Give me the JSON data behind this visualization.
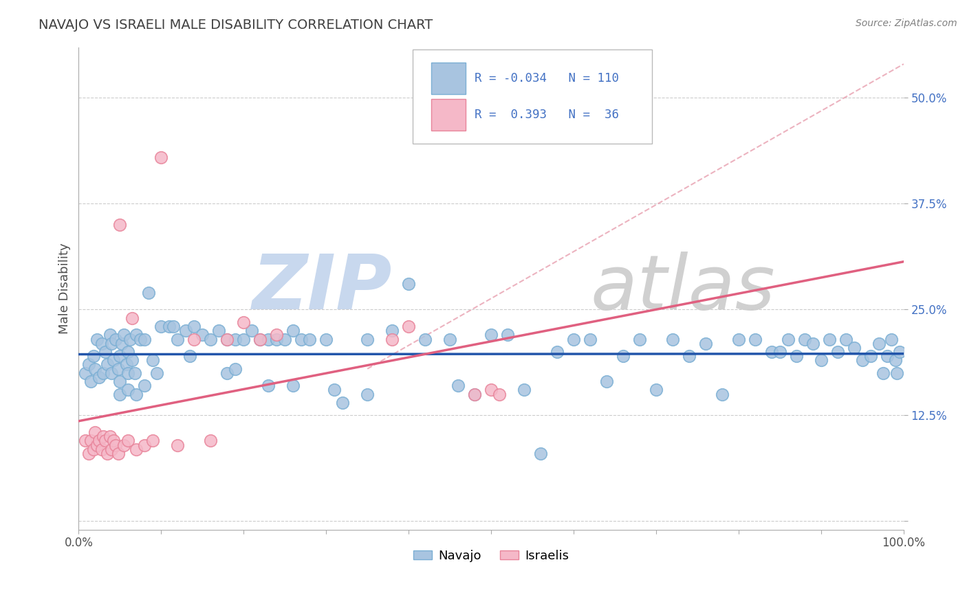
{
  "title": "NAVAJO VS ISRAELI MALE DISABILITY CORRELATION CHART",
  "source": "Source: ZipAtlas.com",
  "ylabel": "Male Disability",
  "navajo_R": -0.034,
  "navajo_N": 110,
  "israeli_R": 0.393,
  "israeli_N": 36,
  "navajo_color": "#a8c4e0",
  "navajo_edge": "#7bafd4",
  "israeli_color": "#f5b8c8",
  "israeli_edge": "#e8849a",
  "navajo_line_color": "#2255aa",
  "israeli_line_color": "#e06080",
  "ref_line_color": "#e8a0b0",
  "grid_color": "#cccccc",
  "title_color": "#404040",
  "legend_text_color": "#4472c4",
  "xlim": [
    0.0,
    1.0
  ],
  "ylim": [
    -0.01,
    0.56
  ],
  "yticks": [
    0.0,
    0.125,
    0.25,
    0.375,
    0.5
  ],
  "ytick_labels": [
    "",
    "12.5%",
    "25.0%",
    "37.5%",
    "50.0%"
  ],
  "background_color": "#ffffff",
  "watermark_color": "#e8e8e8",
  "navajo_x": [
    0.008,
    0.012,
    0.015,
    0.018,
    0.02,
    0.022,
    0.025,
    0.028,
    0.03,
    0.032,
    0.035,
    0.038,
    0.04,
    0.04,
    0.042,
    0.045,
    0.048,
    0.05,
    0.05,
    0.052,
    0.055,
    0.058,
    0.06,
    0.06,
    0.062,
    0.065,
    0.068,
    0.07,
    0.075,
    0.08,
    0.085,
    0.09,
    0.095,
    0.1,
    0.11,
    0.115,
    0.12,
    0.13,
    0.135,
    0.14,
    0.15,
    0.16,
    0.17,
    0.18,
    0.19,
    0.2,
    0.21,
    0.22,
    0.23,
    0.24,
    0.25,
    0.26,
    0.27,
    0.28,
    0.3,
    0.32,
    0.35,
    0.38,
    0.4,
    0.42,
    0.45,
    0.46,
    0.48,
    0.5,
    0.52,
    0.54,
    0.56,
    0.58,
    0.6,
    0.62,
    0.64,
    0.66,
    0.68,
    0.7,
    0.72,
    0.74,
    0.76,
    0.78,
    0.8,
    0.82,
    0.84,
    0.85,
    0.86,
    0.87,
    0.88,
    0.89,
    0.9,
    0.91,
    0.92,
    0.93,
    0.94,
    0.95,
    0.96,
    0.97,
    0.975,
    0.98,
    0.985,
    0.99,
    0.992,
    0.995,
    0.05,
    0.06,
    0.07,
    0.08,
    0.18,
    0.19,
    0.23,
    0.26,
    0.31,
    0.35
  ],
  "navajo_y": [
    0.175,
    0.185,
    0.165,
    0.195,
    0.18,
    0.215,
    0.17,
    0.21,
    0.175,
    0.2,
    0.185,
    0.22,
    0.175,
    0.21,
    0.19,
    0.215,
    0.18,
    0.195,
    0.165,
    0.21,
    0.22,
    0.185,
    0.2,
    0.175,
    0.215,
    0.19,
    0.175,
    0.22,
    0.215,
    0.215,
    0.27,
    0.19,
    0.175,
    0.23,
    0.23,
    0.23,
    0.215,
    0.225,
    0.195,
    0.23,
    0.22,
    0.215,
    0.225,
    0.215,
    0.215,
    0.215,
    0.225,
    0.215,
    0.215,
    0.215,
    0.215,
    0.225,
    0.215,
    0.215,
    0.215,
    0.14,
    0.215,
    0.225,
    0.28,
    0.215,
    0.215,
    0.16,
    0.15,
    0.22,
    0.22,
    0.155,
    0.08,
    0.2,
    0.215,
    0.215,
    0.165,
    0.195,
    0.215,
    0.155,
    0.215,
    0.195,
    0.21,
    0.15,
    0.215,
    0.215,
    0.2,
    0.2,
    0.215,
    0.195,
    0.215,
    0.21,
    0.19,
    0.215,
    0.2,
    0.215,
    0.205,
    0.19,
    0.195,
    0.21,
    0.175,
    0.195,
    0.215,
    0.19,
    0.175,
    0.2,
    0.15,
    0.155,
    0.15,
    0.16,
    0.175,
    0.18,
    0.16,
    0.16,
    0.155,
    0.15
  ],
  "israeli_x": [
    0.008,
    0.012,
    0.015,
    0.018,
    0.02,
    0.022,
    0.025,
    0.028,
    0.03,
    0.032,
    0.035,
    0.038,
    0.04,
    0.042,
    0.045,
    0.048,
    0.05,
    0.055,
    0.06,
    0.065,
    0.07,
    0.08,
    0.09,
    0.1,
    0.12,
    0.14,
    0.16,
    0.18,
    0.2,
    0.22,
    0.24,
    0.38,
    0.4,
    0.48,
    0.5,
    0.51
  ],
  "israeli_y": [
    0.095,
    0.08,
    0.095,
    0.085,
    0.105,
    0.09,
    0.095,
    0.085,
    0.1,
    0.095,
    0.08,
    0.1,
    0.085,
    0.095,
    0.09,
    0.08,
    0.35,
    0.09,
    0.095,
    0.24,
    0.085,
    0.09,
    0.095,
    0.43,
    0.09,
    0.215,
    0.095,
    0.215,
    0.235,
    0.215,
    0.22,
    0.215,
    0.23,
    0.15,
    0.155,
    0.15
  ]
}
